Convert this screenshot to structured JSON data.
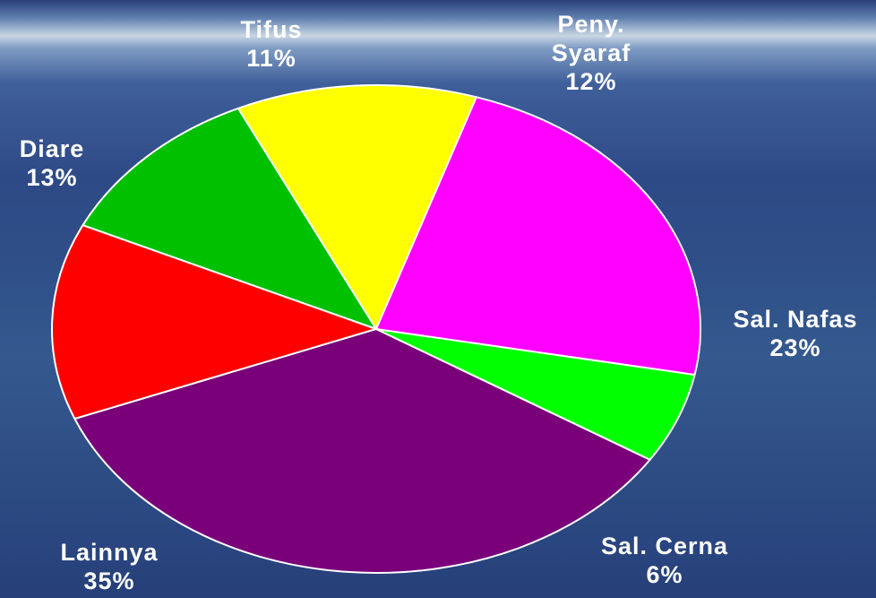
{
  "chart_data": {
    "type": "pie",
    "title": "",
    "start_angle_deg": 72,
    "direction": "counterclockwise",
    "slices": [
      {
        "label_lines": [
          "Peny.",
          "Syaraf"
        ],
        "value": 12,
        "value_text": "12%",
        "color": "#ffff00"
      },
      {
        "label_lines": [
          "Tifus"
        ],
        "value": 11,
        "value_text": "11%",
        "color": "#00c000"
      },
      {
        "label_lines": [
          "Diare"
        ],
        "value": 13,
        "value_text": "13%",
        "color": "#ff0000"
      },
      {
        "label_lines": [
          "Lainnya"
        ],
        "value": 35,
        "value_text": "35%",
        "color": "#7a007a"
      },
      {
        "label_lines": [
          "Sal. Cerna"
        ],
        "value": 6,
        "value_text": "6%",
        "color": "#00ff00"
      },
      {
        "label_lines": [
          "Sal. Nafas"
        ],
        "value": 23,
        "value_text": "23%",
        "color": "#ff00ff"
      }
    ],
    "slice_border_color": "#ffffff",
    "legend": "none"
  }
}
